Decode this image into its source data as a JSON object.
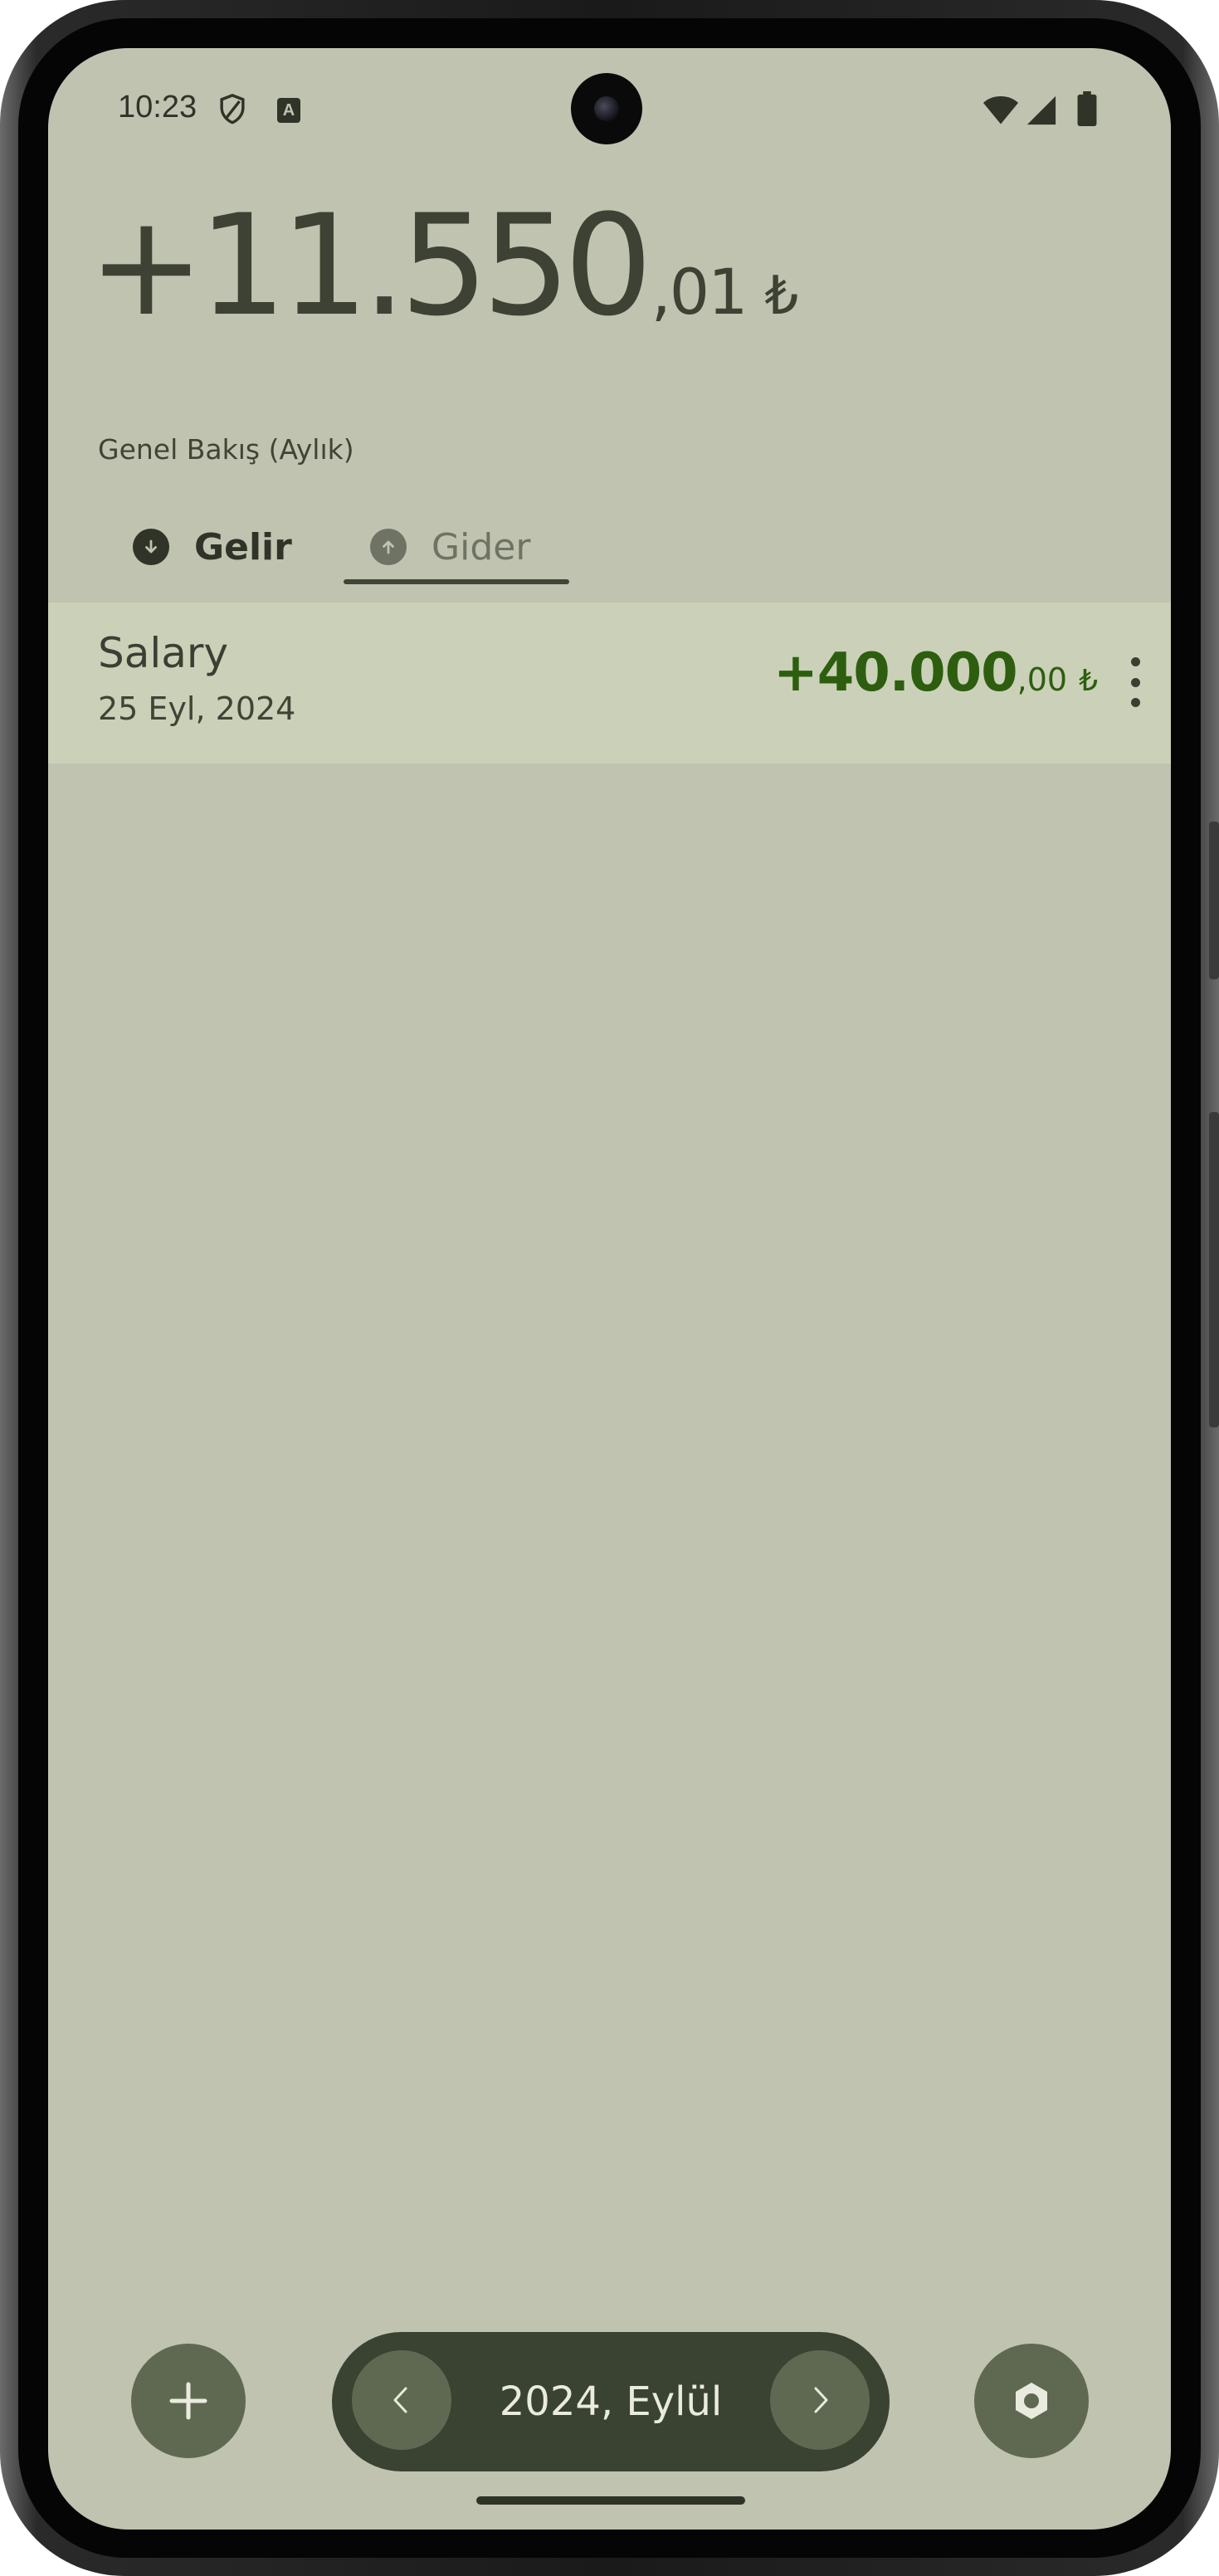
{
  "status_bar": {
    "time": "10:23",
    "notification_icon": "A"
  },
  "header": {
    "balance_main": "+11.550",
    "balance_cents": ",01",
    "currency": "₺",
    "overview_label": "Genel Bakış (Aylık)"
  },
  "tabs": [
    {
      "label": "Gelir",
      "icon": "arrow-down-circle-icon",
      "selected": false
    },
    {
      "label": "Gider",
      "icon": "arrow-up-circle-icon",
      "selected": true
    }
  ],
  "transactions": [
    {
      "title": "Salary",
      "date": "25 Eyl, 2024",
      "amount_main": "+40.000",
      "amount_cents": ",00",
      "currency": "₺"
    }
  ],
  "bottom_bar": {
    "month_label": "2024, Eylül"
  },
  "colors": {
    "background": "#c0c3af",
    "accent_green": "#2d5e0f",
    "pill_dark": "#3a4232",
    "fab": "#5f6952"
  }
}
